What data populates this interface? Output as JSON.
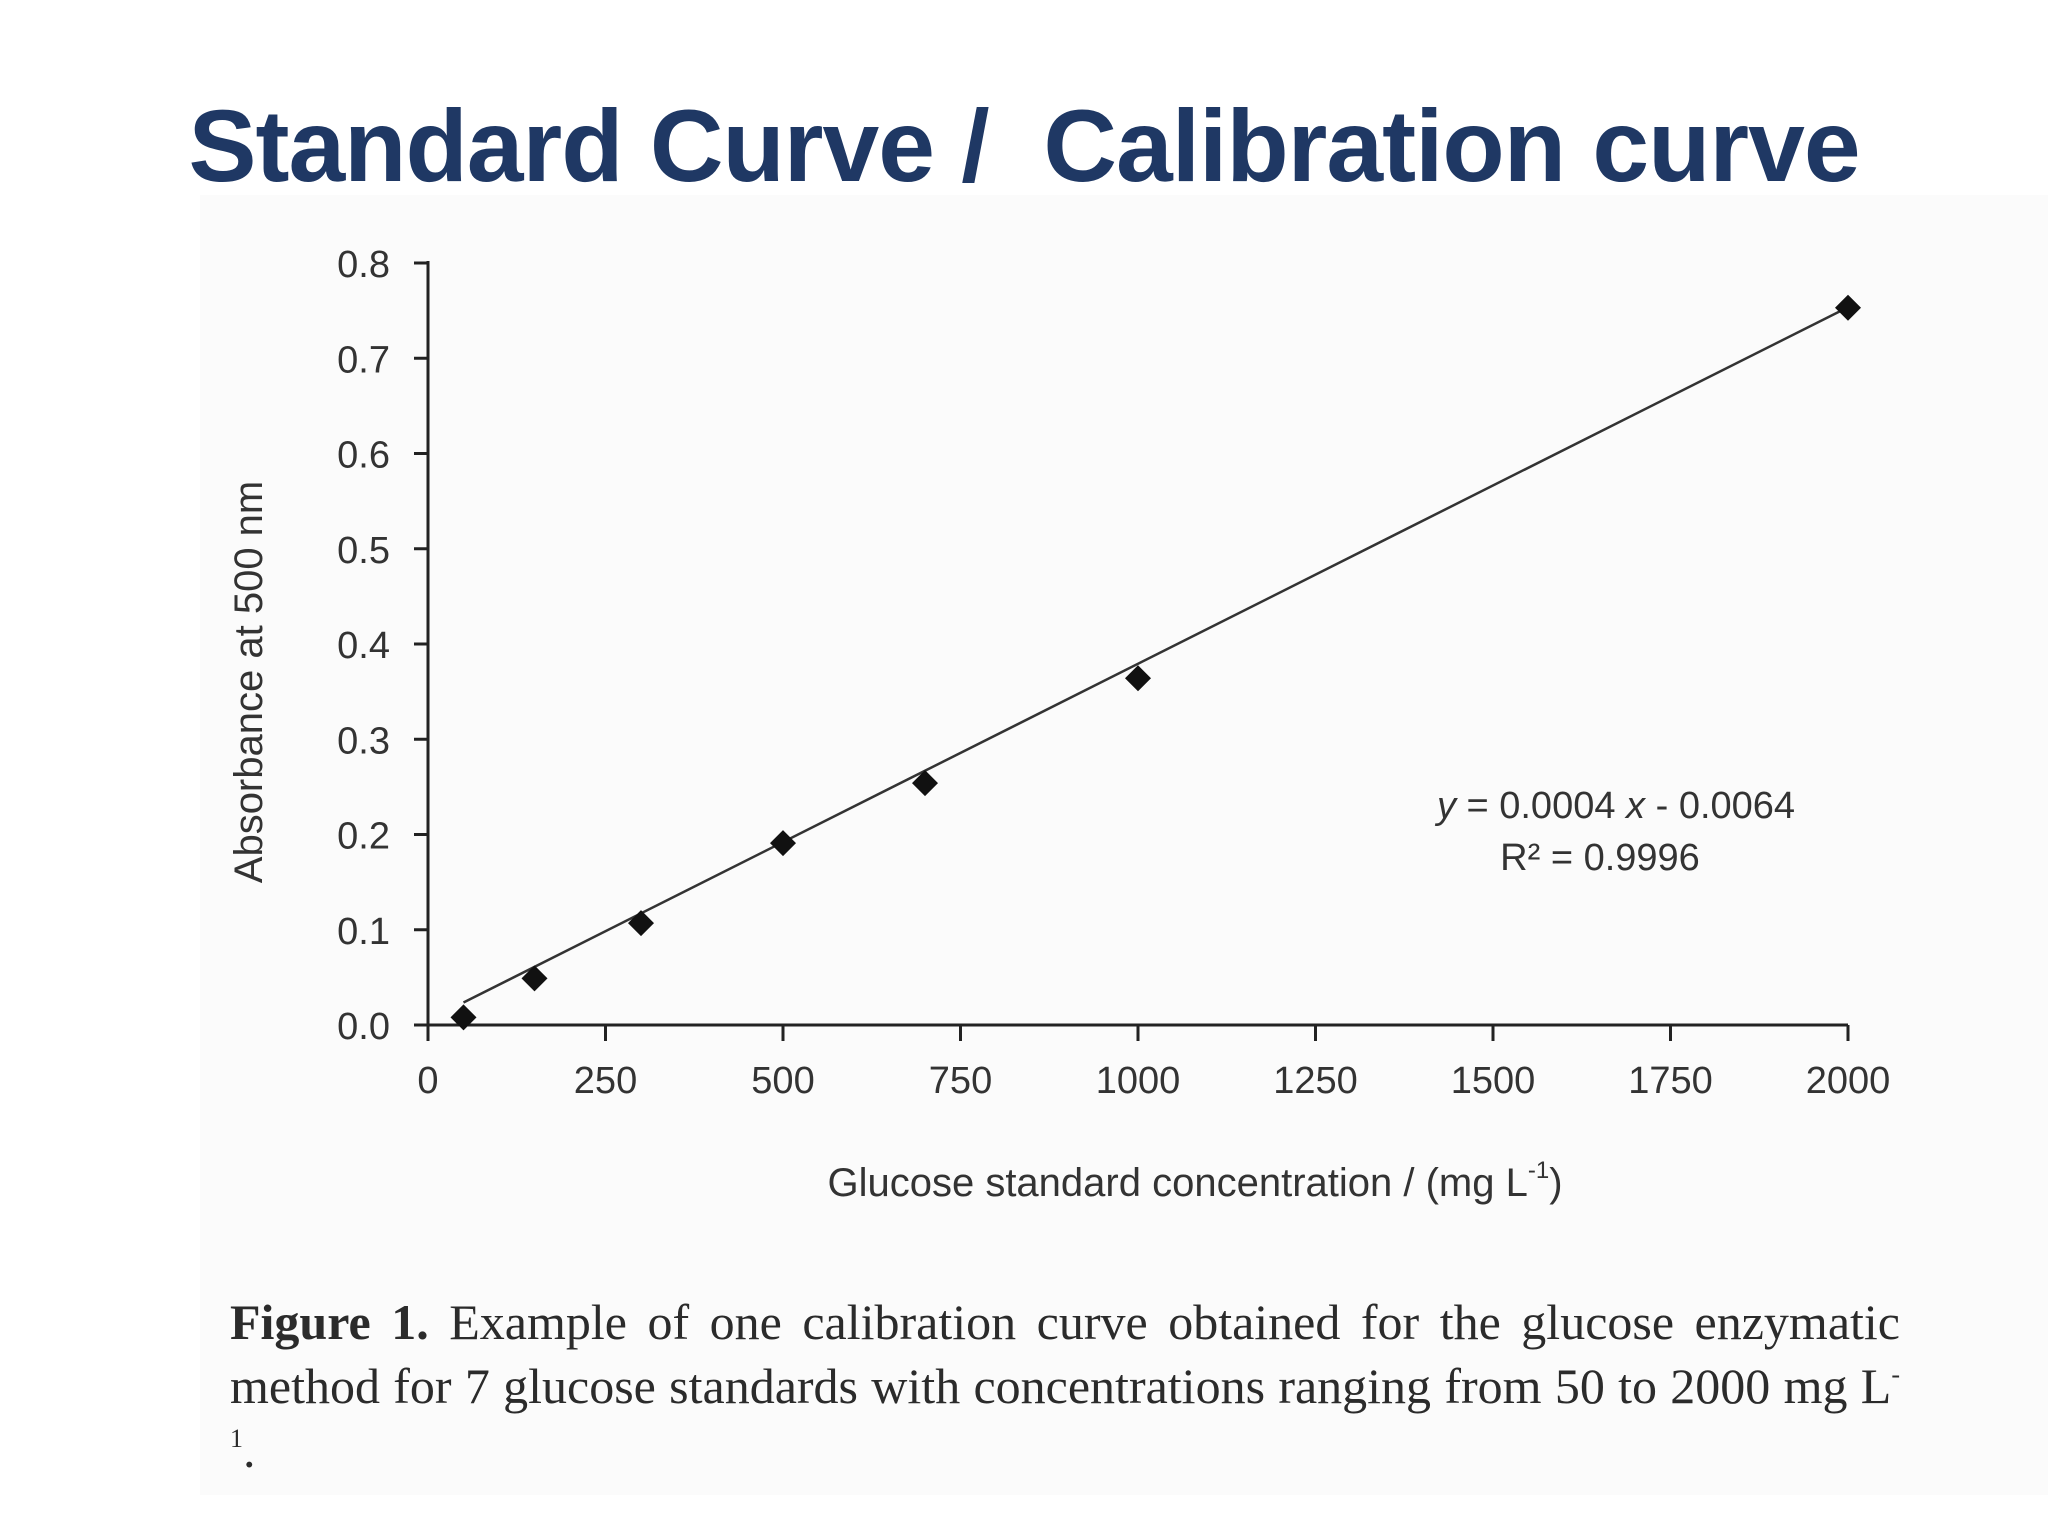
{
  "slide": {
    "title": "Standard Curve /  Calibration curve"
  },
  "caption": {
    "label": "Figure 1.",
    "text": " Example of one calibration curve obtained for the glucose enzymatic method for 7 glucose standards with concentrations ranging from 50 to 2000 mg L",
    "unit_superscript": "-1",
    "end": "."
  },
  "chart_data": {
    "type": "scatter",
    "title": "",
    "xlabel": "Glucose standard concentration / (mg  L",
    "xlabel_superscript": "-1",
    "xlabel_close": ")",
    "ylabel": "Absorbance at 500 nm",
    "xlim": [
      0,
      2000
    ],
    "ylim": [
      0,
      0.8
    ],
    "x_ticks": [
      0,
      250,
      500,
      750,
      1000,
      1250,
      1500,
      1750,
      2000
    ],
    "x_tick_labels": [
      "0",
      "250",
      "500",
      "750",
      "1000",
      "1250",
      "1500",
      "1750",
      "2000"
    ],
    "y_ticks": [
      0,
      0.1,
      0.2,
      0.3,
      0.4,
      0.5,
      0.6,
      0.7,
      0.8
    ],
    "y_tick_labels": [
      "0.0",
      "0.1",
      "0.2",
      "0.3",
      "0.4",
      "0.5",
      "0.6",
      "0.7",
      "0.8"
    ],
    "grid": false,
    "points": [
      {
        "x": 50,
        "y": 0.008
      },
      {
        "x": 150,
        "y": 0.049
      },
      {
        "x": 300,
        "y": 0.107
      },
      {
        "x": 500,
        "y": 0.191
      },
      {
        "x": 700,
        "y": 0.254
      },
      {
        "x": 1000,
        "y": 0.364
      },
      {
        "x": 2000,
        "y": 0.753
      }
    ],
    "trendline": {
      "slope": 0.0004,
      "intercept": -0.0064
    },
    "equation": {
      "y_var": "y",
      "equals_coef": " = 0.0004",
      "x_var": "x",
      "intercept_text": " - 0.0064",
      "r_squared": "R² = 0.9996"
    },
    "colors": {
      "marker": "#111111",
      "line": "#333333",
      "axis": "#222222",
      "text": "#333333",
      "title": "#1f3864"
    }
  }
}
